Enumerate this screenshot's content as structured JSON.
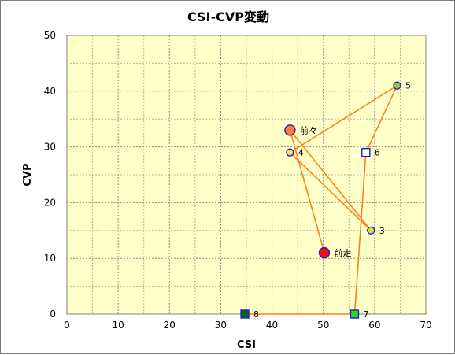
{
  "chart_data": {
    "type": "scatter",
    "title": "CSI-CVP変動",
    "xlabel": "CSI",
    "ylabel": "CVP",
    "xlim": [
      0,
      70
    ],
    "ylim": [
      0,
      50
    ],
    "xticks": [
      "0",
      "10",
      "20",
      "30",
      "40",
      "50",
      "60",
      "70"
    ],
    "yticks": [
      "0",
      "10",
      "20",
      "30",
      "40",
      "50"
    ],
    "grid": true,
    "plot_background": "#ffffc8",
    "line_color": "#ff7f1e",
    "path_order": [
      "8",
      "7",
      "6",
      "5",
      "4",
      "3",
      "前々",
      "前走"
    ],
    "points": [
      {
        "label": "前走",
        "x": 50.2,
        "y": 11.0,
        "marker": "circle-large",
        "fill": "#ee1111",
        "stroke": "#2020c0"
      },
      {
        "label": "前々",
        "x": 43.5,
        "y": 33.0,
        "marker": "circle-large",
        "fill": "#ff8033",
        "stroke": "#2020c0"
      },
      {
        "label": "3",
        "x": 59.3,
        "y": 15.0,
        "marker": "circle",
        "fill": "#d7e04c",
        "stroke": "#2020c0"
      },
      {
        "label": "4",
        "x": 43.5,
        "y": 29.0,
        "marker": "circle",
        "fill": "#f7e24a",
        "stroke": "#2020c0"
      },
      {
        "label": "5",
        "x": 64.4,
        "y": 41.0,
        "marker": "circle",
        "fill": "#9cc63a",
        "stroke": "#2020c0"
      },
      {
        "label": "6",
        "x": 58.3,
        "y": 29.0,
        "marker": "square",
        "fill": "#ffffff",
        "stroke": "#2020c0"
      },
      {
        "label": "7",
        "x": 56.1,
        "y": 0.0,
        "marker": "square",
        "fill": "#22dd22",
        "stroke": "#2020c0"
      },
      {
        "label": "8",
        "x": 34.7,
        "y": 0.0,
        "marker": "square",
        "fill": "#006a1f",
        "stroke": "#2020c0"
      }
    ]
  }
}
